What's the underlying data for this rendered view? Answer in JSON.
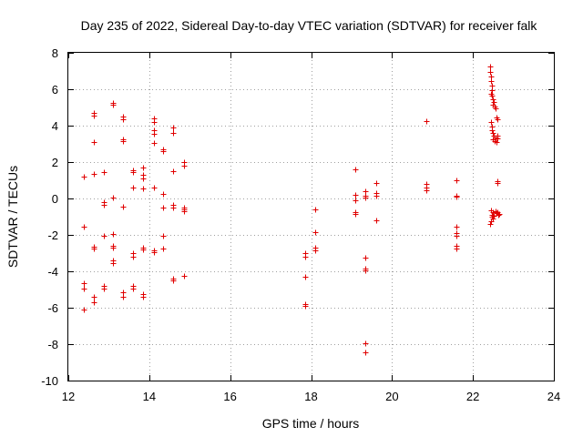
{
  "chart_data": {
    "type": "scatter",
    "title": "Day 235 of 2022, Sidereal Day-to-day VTEC variation (SDTVAR) for receiver falk",
    "xlabel": "GPS time / hours",
    "ylabel": "SDTVAR / TECUs",
    "xlim": [
      12,
      24
    ],
    "ylim": [
      -10,
      8
    ],
    "xticks": [
      12,
      14,
      16,
      18,
      20,
      22,
      24
    ],
    "yticks": [
      -10,
      -8,
      -6,
      -4,
      -2,
      0,
      2,
      4,
      6,
      8
    ],
    "grid": true,
    "marker": "+",
    "color": "#e00000",
    "series": [
      {
        "name": "SDTVAR",
        "points": [
          [
            12.38,
            1.2
          ],
          [
            12.38,
            -1.55
          ],
          [
            12.38,
            -4.65
          ],
          [
            12.38,
            -4.95
          ],
          [
            12.38,
            -6.1
          ],
          [
            12.62,
            4.7
          ],
          [
            12.62,
            4.55
          ],
          [
            12.62,
            3.1
          ],
          [
            12.62,
            1.35
          ],
          [
            12.62,
            -2.65
          ],
          [
            12.62,
            -2.75
          ],
          [
            12.62,
            -5.4
          ],
          [
            12.62,
            -5.7
          ],
          [
            12.88,
            1.45
          ],
          [
            12.88,
            -0.2
          ],
          [
            12.88,
            -0.35
          ],
          [
            12.88,
            -2.05
          ],
          [
            12.88,
            -4.8
          ],
          [
            12.88,
            -4.95
          ],
          [
            13.1,
            5.25
          ],
          [
            13.1,
            5.15
          ],
          [
            13.1,
            0.05
          ],
          [
            13.1,
            -1.95
          ],
          [
            13.1,
            -2.6
          ],
          [
            13.1,
            -2.7
          ],
          [
            13.1,
            -3.4
          ],
          [
            13.1,
            -3.55
          ],
          [
            13.35,
            4.5
          ],
          [
            13.35,
            4.35
          ],
          [
            13.35,
            3.25
          ],
          [
            13.35,
            3.15
          ],
          [
            13.35,
            -0.45
          ],
          [
            13.35,
            -5.15
          ],
          [
            13.35,
            -5.4
          ],
          [
            13.6,
            1.55
          ],
          [
            13.6,
            1.45
          ],
          [
            13.6,
            0.6
          ],
          [
            13.6,
            -3.0
          ],
          [
            13.6,
            -3.2
          ],
          [
            13.6,
            -4.8
          ],
          [
            13.6,
            -4.95
          ],
          [
            13.85,
            1.7
          ],
          [
            13.85,
            1.3
          ],
          [
            13.85,
            1.1
          ],
          [
            13.85,
            0.55
          ],
          [
            13.85,
            -2.7
          ],
          [
            13.85,
            -2.8
          ],
          [
            13.85,
            -5.25
          ],
          [
            13.85,
            -5.4
          ],
          [
            14.12,
            4.4
          ],
          [
            14.12,
            4.2
          ],
          [
            14.12,
            3.75
          ],
          [
            14.12,
            3.55
          ],
          [
            14.12,
            3.05
          ],
          [
            14.12,
            0.6
          ],
          [
            14.12,
            -2.85
          ],
          [
            14.12,
            -2.95
          ],
          [
            14.35,
            2.7
          ],
          [
            14.35,
            2.6
          ],
          [
            14.35,
            0.25
          ],
          [
            14.35,
            -0.5
          ],
          [
            14.35,
            -2.05
          ],
          [
            14.35,
            -2.75
          ],
          [
            14.58,
            3.9
          ],
          [
            14.58,
            3.6
          ],
          [
            14.58,
            1.5
          ],
          [
            14.58,
            -0.35
          ],
          [
            14.58,
            -0.5
          ],
          [
            14.58,
            -4.4
          ],
          [
            14.58,
            -4.5
          ],
          [
            14.85,
            2.0
          ],
          [
            14.85,
            1.8
          ],
          [
            14.85,
            -0.5
          ],
          [
            14.85,
            -0.6
          ],
          [
            14.85,
            -0.7
          ],
          [
            14.85,
            -4.25
          ],
          [
            17.85,
            -3.0
          ],
          [
            17.85,
            -3.2
          ],
          [
            17.85,
            -4.3
          ],
          [
            17.85,
            -5.8
          ],
          [
            17.85,
            -5.9
          ],
          [
            18.1,
            -0.6
          ],
          [
            18.1,
            -1.85
          ],
          [
            18.1,
            -2.7
          ],
          [
            18.1,
            -2.85
          ],
          [
            19.1,
            1.6
          ],
          [
            19.1,
            0.2
          ],
          [
            19.1,
            -0.1
          ],
          [
            19.1,
            -0.75
          ],
          [
            19.1,
            -0.85
          ],
          [
            19.35,
            0.4
          ],
          [
            19.35,
            0.15
          ],
          [
            19.35,
            0.05
          ],
          [
            19.35,
            -3.25
          ],
          [
            19.35,
            -3.85
          ],
          [
            19.35,
            -3.95
          ],
          [
            19.35,
            -7.95
          ],
          [
            19.35,
            -8.45
          ],
          [
            19.6,
            0.85
          ],
          [
            19.6,
            0.3
          ],
          [
            19.6,
            0.15
          ],
          [
            19.6,
            -1.2
          ],
          [
            20.85,
            4.25
          ],
          [
            20.85,
            0.8
          ],
          [
            20.85,
            0.6
          ],
          [
            20.85,
            0.45
          ],
          [
            21.6,
            1.0
          ],
          [
            21.6,
            0.15
          ],
          [
            21.6,
            0.1
          ],
          [
            21.6,
            -1.55
          ],
          [
            21.6,
            -1.9
          ],
          [
            21.6,
            -2.05
          ],
          [
            21.6,
            -2.6
          ],
          [
            21.6,
            -2.75
          ],
          [
            22.42,
            7.25
          ],
          [
            22.43,
            6.95
          ],
          [
            22.44,
            6.7
          ],
          [
            22.45,
            6.45
          ],
          [
            22.46,
            6.2
          ],
          [
            22.47,
            5.95
          ],
          [
            22.44,
            5.75
          ],
          [
            22.48,
            5.65
          ],
          [
            22.5,
            5.45
          ],
          [
            22.52,
            5.3
          ],
          [
            22.5,
            5.15
          ],
          [
            22.54,
            5.05
          ],
          [
            22.55,
            4.95
          ],
          [
            22.58,
            4.45
          ],
          [
            22.6,
            4.35
          ],
          [
            22.45,
            4.2
          ],
          [
            22.46,
            3.95
          ],
          [
            22.48,
            3.75
          ],
          [
            22.5,
            3.6
          ],
          [
            22.52,
            3.45
          ],
          [
            22.55,
            3.35
          ],
          [
            22.6,
            3.45
          ],
          [
            22.6,
            3.3
          ],
          [
            22.5,
            3.25
          ],
          [
            22.53,
            3.15
          ],
          [
            22.58,
            3.1
          ],
          [
            22.6,
            0.95
          ],
          [
            22.6,
            0.85
          ],
          [
            22.45,
            -0.65
          ],
          [
            22.5,
            -0.75
          ],
          [
            22.55,
            -0.7
          ],
          [
            22.6,
            -0.75
          ],
          [
            22.65,
            -0.85
          ],
          [
            22.48,
            -0.9
          ],
          [
            22.52,
            -0.95
          ],
          [
            22.58,
            -0.8
          ],
          [
            22.62,
            -0.9
          ],
          [
            22.46,
            -1.0
          ],
          [
            22.5,
            -1.1
          ],
          [
            22.45,
            -1.25
          ],
          [
            22.42,
            -1.4
          ]
        ]
      }
    ]
  }
}
